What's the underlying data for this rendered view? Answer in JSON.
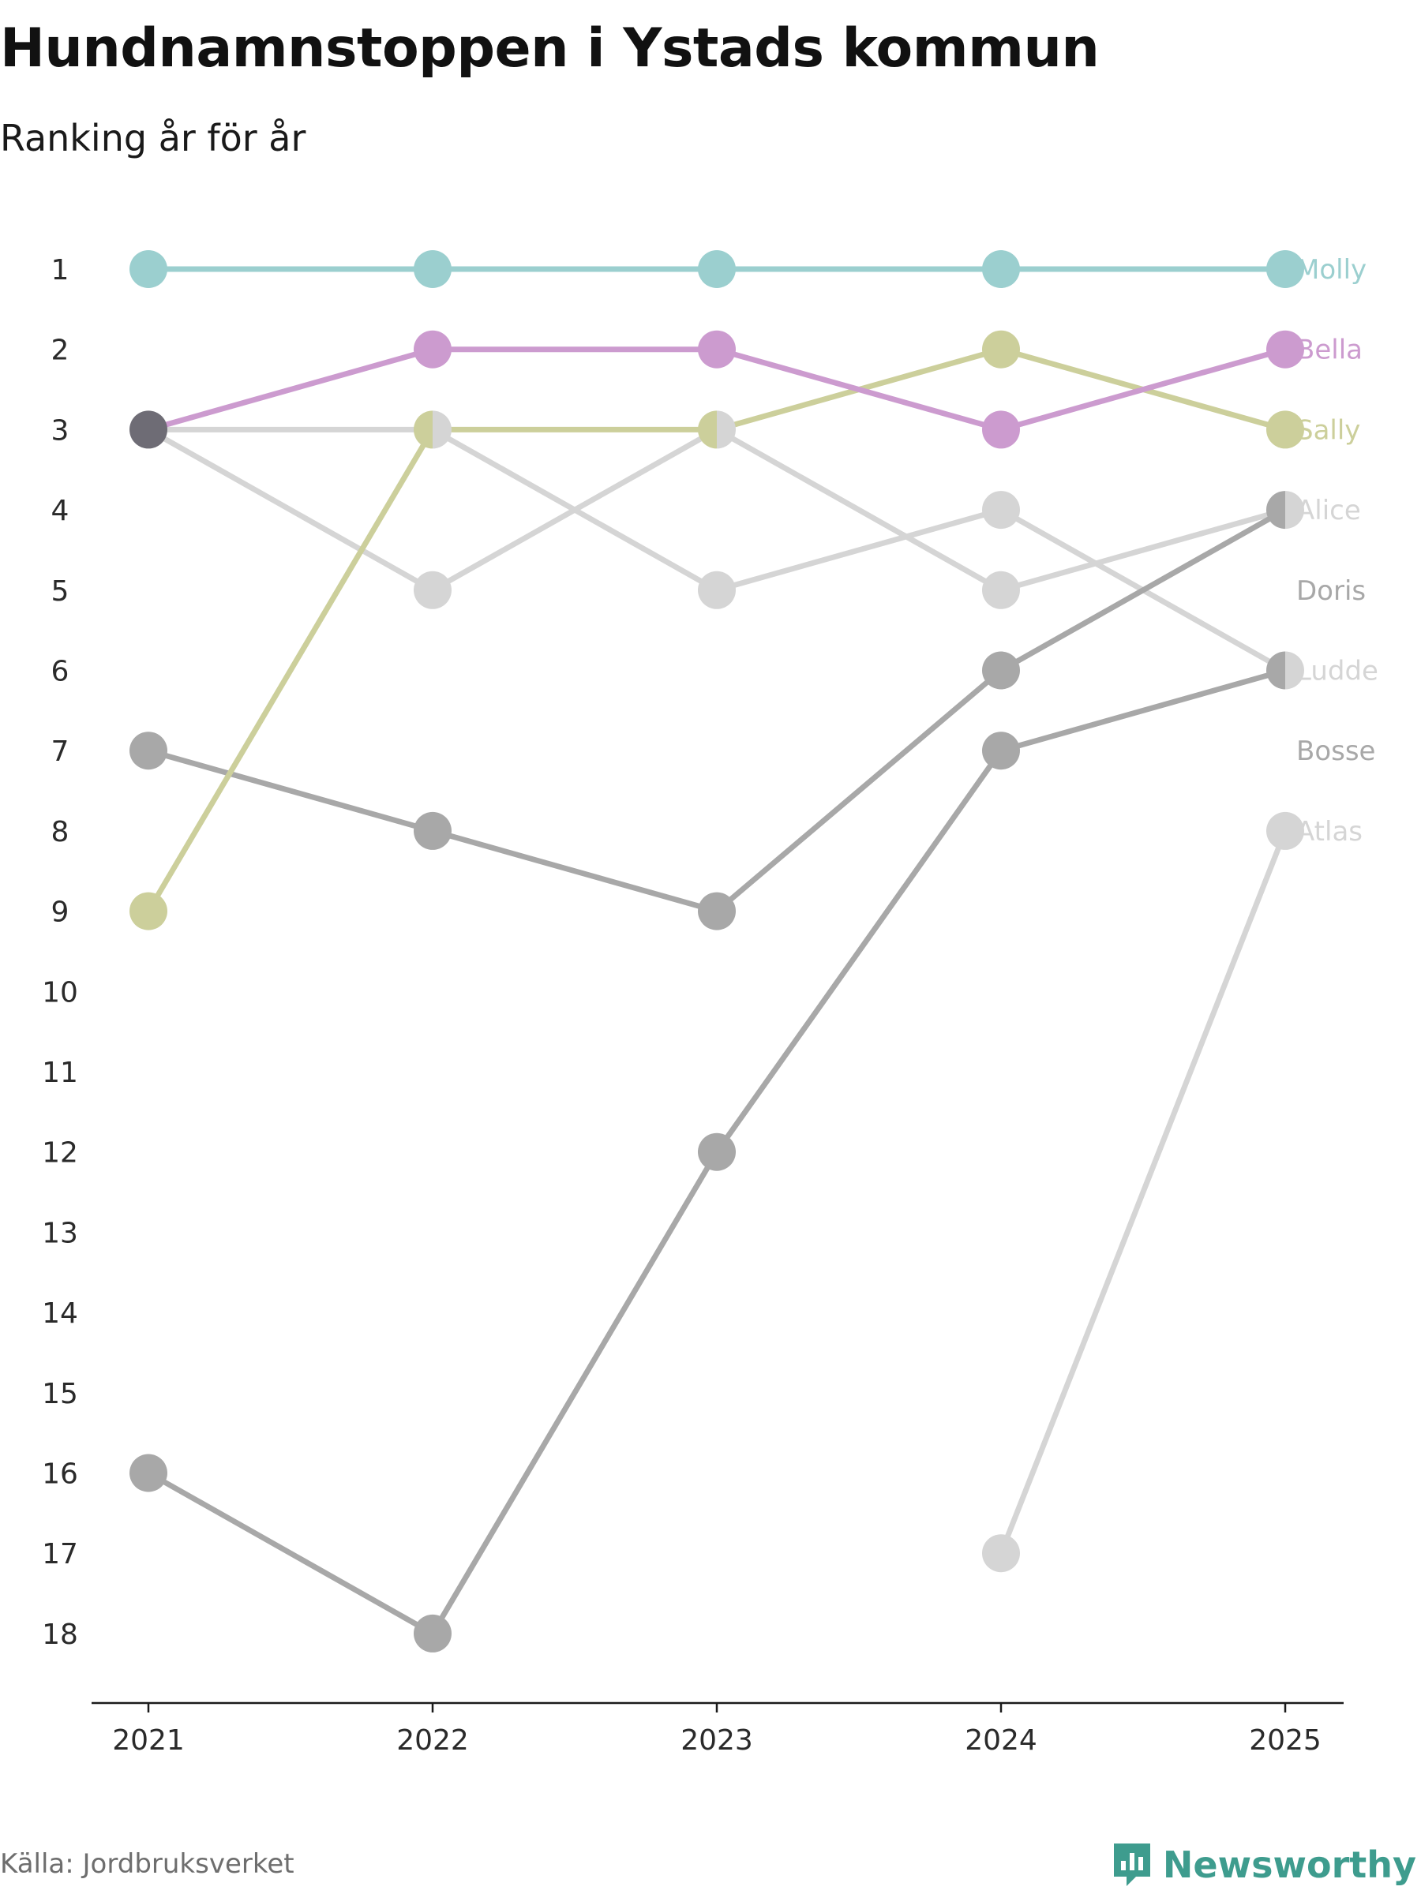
{
  "header": {
    "title": "Hundnamnstoppen i Ystads kommun",
    "subtitle": "Ranking år för år"
  },
  "footer": {
    "source": "Källa: Jordbruksverket",
    "brand": "Newsworthy",
    "brand_color": "#3e9c8e"
  },
  "chart_data": {
    "type": "line",
    "subtype": "bump",
    "title": "Hundnamnstoppen i Ystads kommun",
    "subtitle": "Ranking år för år",
    "xlabel": "",
    "ylabel": "",
    "x": [
      "2021",
      "2022",
      "2023",
      "2024",
      "2025"
    ],
    "y_ticks": [
      "1",
      "2",
      "3",
      "4",
      "5",
      "6",
      "7",
      "8",
      "9",
      "10",
      "11",
      "12",
      "13",
      "14",
      "15",
      "16",
      "17",
      "18"
    ],
    "ylim": [
      1,
      18
    ],
    "y_inverted": true,
    "grid": false,
    "series": [
      {
        "name": "Atlas",
        "color": "#d5d5d5",
        "values": [
          null,
          null,
          null,
          17,
          8
        ]
      },
      {
        "name": "Ludde",
        "color": "#d5d5d5",
        "values": [
          3,
          3,
          5,
          4,
          6
        ]
      },
      {
        "name": "Alice",
        "color": "#d5d5d5",
        "values": [
          3,
          5,
          3,
          5,
          4
        ]
      },
      {
        "name": "Doris",
        "color": "#a8a8a8",
        "values": [
          7,
          8,
          9,
          6,
          4
        ]
      },
      {
        "name": "Bosse",
        "color": "#a8a8a8",
        "values": [
          16,
          18,
          12,
          7,
          6
        ]
      },
      {
        "name": "Sally",
        "color": "#cccf9b",
        "values": [
          9,
          3,
          3,
          2,
          3
        ]
      },
      {
        "name": "Bella",
        "color": "#cc9bcf",
        "values": [
          3,
          2,
          2,
          3,
          2
        ]
      },
      {
        "name": "Molly",
        "color": "#9bcfcf",
        "values": [
          1,
          1,
          1,
          1,
          1
        ]
      }
    ],
    "end_labels": [
      {
        "name": "Molly",
        "rank": 1,
        "color": "#9bcfcf"
      },
      {
        "name": "Bella",
        "rank": 2,
        "color": "#cc9bcf"
      },
      {
        "name": "Sally",
        "rank": 3,
        "color": "#cccf9b"
      },
      {
        "name": "Alice",
        "rank": 4,
        "color": "#d5d5d5"
      },
      {
        "name": "Doris",
        "rank": 5,
        "color": "#a8a8a8"
      },
      {
        "name": "Ludde",
        "rank": 6,
        "color": "#d5d5d5"
      },
      {
        "name": "Bosse",
        "rank": 7,
        "color": "#a8a8a8"
      },
      {
        "name": "Atlas",
        "rank": 8,
        "color": "#d5d5d5"
      }
    ],
    "tie_marker_color": "#6e6c75"
  }
}
